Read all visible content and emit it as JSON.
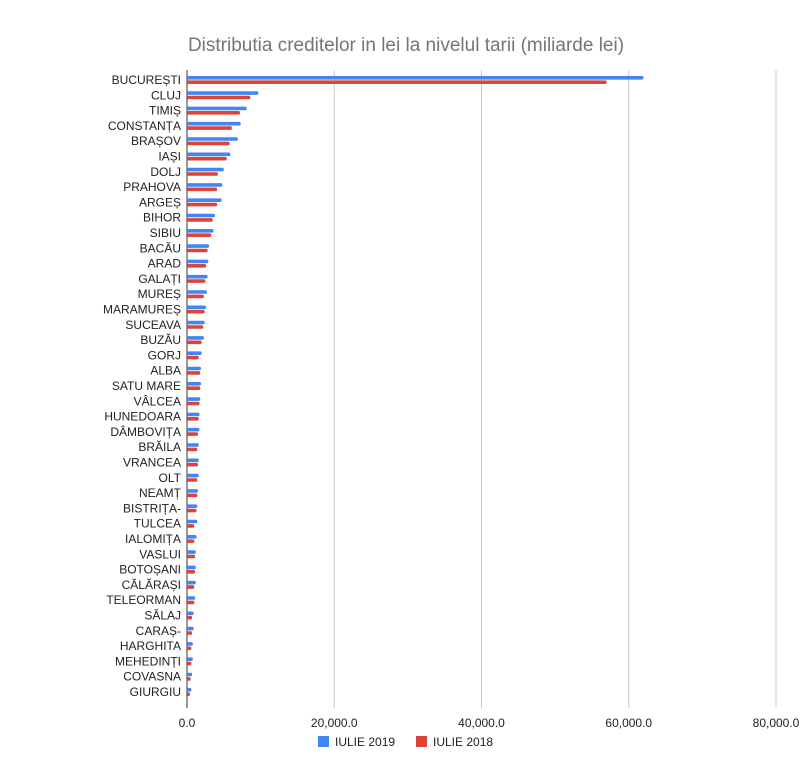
{
  "chart_data": {
    "type": "bar",
    "orientation": "horizontal",
    "title": "Distributia creditelor in lei la nivelul tarii (miliarde lei)",
    "xlabel": "",
    "ylabel": "",
    "xlim": [
      0,
      80000
    ],
    "x_ticks": [
      0,
      20000,
      40000,
      60000,
      80000
    ],
    "x_tick_labels": [
      "0.0",
      "20,000.0",
      "40,000.0",
      "60,000.0",
      "80,000.0"
    ],
    "grid": true,
    "legend_position": "bottom",
    "categories": [
      "BUCUREȘTI",
      "CLUJ",
      "TIMIȘ",
      "CONSTANȚA",
      "BRAȘOV",
      "IAȘI",
      "DOLJ",
      "PRAHOVA",
      "ARGEȘ",
      "BIHOR",
      "SIBIU",
      "BACĂU",
      "ARAD",
      "GALAȚI",
      "MUREȘ",
      "MARAMUREȘ",
      "SUCEAVA",
      "BUZĂU",
      "GORJ",
      "ALBA",
      "SATU MARE",
      "VÂLCEA",
      "HUNEDOARA",
      "DÂMBOVIȚA",
      "BRĂILA",
      "VRANCEA",
      "OLT",
      "NEAMȚ",
      "BISTRIȚA-",
      "TULCEA",
      "IALOMIȚA",
      "VASLUI",
      "BOTOȘANI",
      "CĂLĂRAȘI",
      "TELEORMAN",
      "SĂLAJ",
      "CARAȘ-",
      "HARGHITA",
      "MEHEDINȚI",
      "COVASNA",
      "GIURGIU"
    ],
    "series": [
      {
        "name": "IULIE 2019",
        "color": "#4285f4",
        "values": [
          62000,
          9700,
          8100,
          7300,
          6900,
          5900,
          5000,
          4800,
          4700,
          3800,
          3600,
          3000,
          2900,
          2800,
          2700,
          2600,
          2400,
          2300,
          2000,
          1900,
          1900,
          1800,
          1700,
          1700,
          1600,
          1600,
          1600,
          1500,
          1400,
          1400,
          1300,
          1200,
          1200,
          1200,
          1100,
          900,
          900,
          800,
          800,
          700,
          600
        ]
      },
      {
        "name": "IULIE 2018",
        "color": "#db4437",
        "values": [
          57000,
          8600,
          7200,
          6100,
          5800,
          5400,
          4200,
          4100,
          4100,
          3500,
          3300,
          2800,
          2600,
          2500,
          2300,
          2400,
          2200,
          2000,
          1600,
          1800,
          1800,
          1700,
          1600,
          1500,
          1400,
          1500,
          1400,
          1400,
          1300,
          1000,
          1000,
          1100,
          1100,
          1000,
          1000,
          700,
          700,
          600,
          600,
          500,
          400
        ]
      }
    ]
  }
}
